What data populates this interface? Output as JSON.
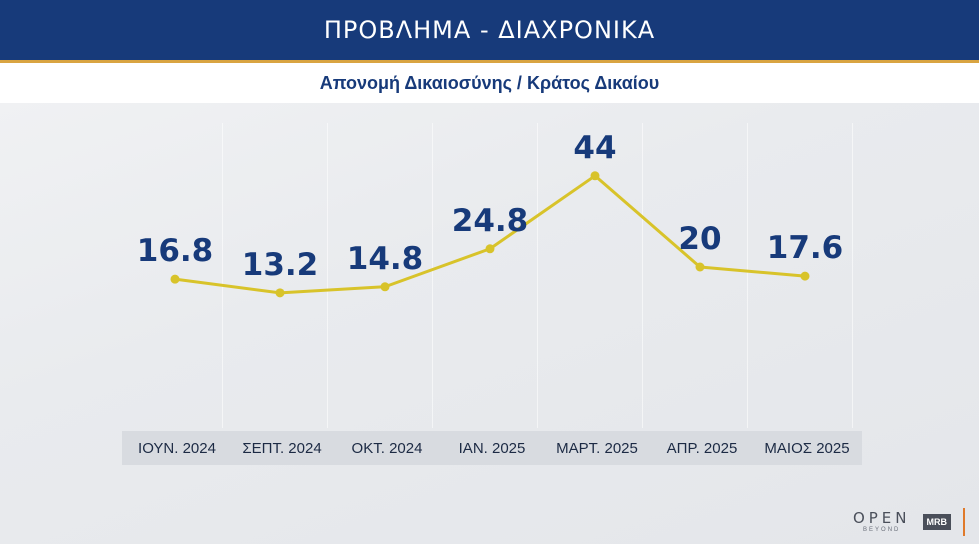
{
  "header": {
    "title": "ΠΡΟΒΛΗΜΑ - ΔΙΑΧΡΟΝΙΚΑ",
    "subtitle": "Απονομή Δικαιοσύνης / Κράτος Δικαίου"
  },
  "branding": {
    "open_main": "OPEN",
    "open_sub": "BEYOND",
    "mrb": "MRB"
  },
  "colors": {
    "header_bg": "#173a7a",
    "line": "#d8c32a",
    "value_text": "#173a7a"
  },
  "chart_data": {
    "type": "line",
    "title": "Απονομή Δικαιοσύνης / Κράτος Δικαίου",
    "categories": [
      "ΙΟΥΝ. 2024",
      "ΣΕΠΤ. 2024",
      "ΟΚΤ. 2024",
      "ΙΑΝ. 2025",
      "ΜΑΡΤ. 2025",
      "ΑΠΡ. 2025",
      "ΜΑΙΟΣ 2025"
    ],
    "series": [
      {
        "values": [
          16.8,
          13.2,
          14.8,
          24.8,
          44,
          20,
          17.6
        ]
      }
    ],
    "value_labels": [
      "16.8",
      "13.2",
      "14.8",
      "24.8",
      "44",
      "20",
      "17.6"
    ],
    "ylim": [
      0,
      50
    ],
    "grid": false,
    "xlabel": "",
    "ylabel": ""
  }
}
